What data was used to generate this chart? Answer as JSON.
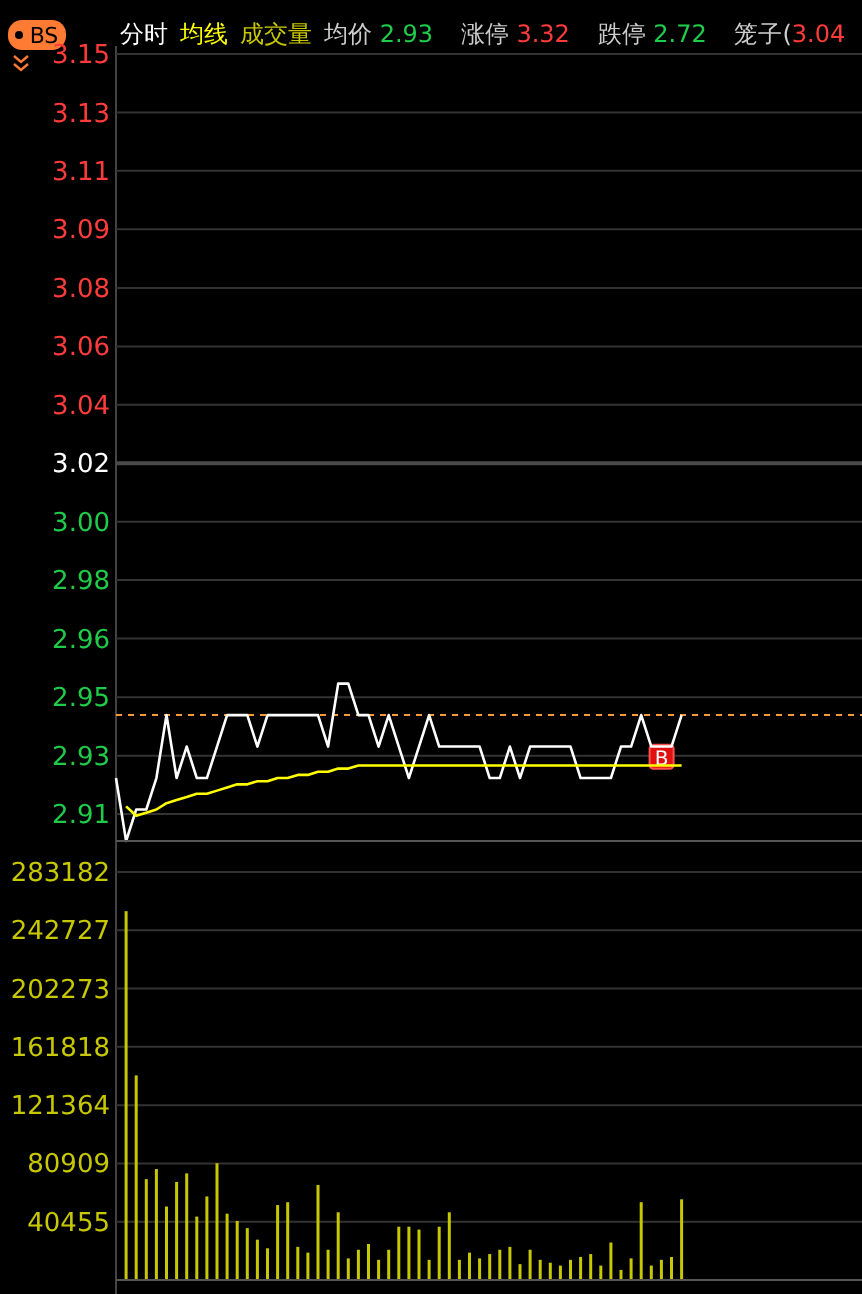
{
  "chart_data": [
    {
      "type": "line",
      "categories": [
        null,
        null,
        null,
        null,
        null,
        null,
        null,
        null,
        null,
        null,
        null,
        null,
        null,
        null,
        null,
        null,
        null,
        null,
        null,
        null,
        null,
        null,
        null,
        null,
        null,
        null,
        null,
        null,
        null,
        null,
        null,
        null,
        null,
        null,
        null,
        null,
        null,
        null,
        null,
        null,
        null,
        null,
        null,
        null,
        null,
        null,
        null,
        null,
        null,
        null,
        null,
        null,
        null,
        null,
        null,
        null,
        null,
        null,
        null,
        null,
        null,
        null,
        null,
        null,
        null,
        null,
        null,
        null,
        null,
        null,
        null,
        null,
        null,
        null
      ],
      "series": [
        {
          "name": "分时",
          "color": "#ffffff",
          "values": [
            2.92,
            2.9,
            2.91,
            2.91,
            2.92,
            2.94,
            2.92,
            2.93,
            2.92,
            2.92,
            2.93,
            2.94,
            2.94,
            2.94,
            2.93,
            2.94,
            2.94,
            2.94,
            2.94,
            2.94,
            2.94,
            2.93,
            2.95,
            2.95,
            2.94,
            2.94,
            2.93,
            2.94,
            2.93,
            2.92,
            2.93,
            2.94,
            2.93,
            2.93,
            2.93,
            2.93,
            2.93,
            2.92,
            2.92,
            2.93,
            2.92,
            2.93,
            2.93,
            2.93,
            2.93,
            2.93,
            2.92,
            2.92,
            2.92,
            2.92,
            2.93,
            2.93,
            2.94,
            2.93,
            2.93,
            2.93,
            2.94,
            null,
            null,
            null,
            null,
            null,
            null,
            null,
            null,
            null,
            null,
            null,
            null,
            null,
            null,
            null,
            null,
            null
          ]
        },
        {
          "name": "均线",
          "color": "#ffff00",
          "values": [
            null,
            2.911,
            2.908,
            2.909,
            2.91,
            2.912,
            2.913,
            2.914,
            2.915,
            2.915,
            2.916,
            2.917,
            2.918,
            2.918,
            2.919,
            2.919,
            2.92,
            2.92,
            2.921,
            2.921,
            2.922,
            2.922,
            2.923,
            2.923,
            2.924,
            2.924,
            2.924,
            2.924,
            2.924,
            2.924,
            2.924,
            2.924,
            2.924,
            2.924,
            2.924,
            2.924,
            2.924,
            2.924,
            2.924,
            2.924,
            2.924,
            2.924,
            2.924,
            2.924,
            2.924,
            2.924,
            2.924,
            2.924,
            2.924,
            2.924,
            2.924,
            2.924,
            2.924,
            2.924,
            2.924,
            2.924,
            2.924,
            null,
            null,
            null,
            null,
            null,
            null,
            null,
            null,
            null,
            null,
            null,
            null,
            null,
            null,
            null,
            null,
            null
          ]
        }
      ],
      "ylim": [
        2.9,
        3.15
      ],
      "yticks": [
        3.15,
        {
          "value": 3.1314,
          "label": "3.13"
        },
        {
          "value": 3.1129,
          "label": "3.11"
        },
        {
          "value": 3.0943,
          "label": "3.09"
        },
        {
          "value": 3.0757,
          "label": "3.08"
        },
        {
          "value": 3.0571,
          "label": "3.06"
        },
        {
          "value": 3.0386,
          "label": "3.04"
        },
        3.02,
        {
          "value": 3.0014,
          "label": "3.00"
        },
        {
          "value": 2.9829,
          "label": "2.98"
        },
        {
          "value": 2.9643,
          "label": "2.96"
        },
        {
          "value": 2.9457,
          "label": "2.95"
        },
        {
          "value": 2.9271,
          "label": "2.93"
        },
        {
          "value": 2.9086,
          "label": "2.91"
        }
      ],
      "grid": "y",
      "legend": "top left",
      "marker": "none",
      "line_style": "solid",
      "ref_lines": [
        {
          "axis": "y",
          "value": 3.02,
          "color": "#4a4a4a"
        },
        {
          "axis": "y",
          "value": 2.94,
          "color": "#ff9933",
          "line_style": "dashed"
        }
      ],
      "annotations": [
        "BS",
        "均价 2.93",
        "涨停 3.32",
        "跌停 2.72",
        "笼子(3.04",
        {
          "text": "B",
          "y": 2.928
        }
      ]
    },
    {
      "type": "bar",
      "categories": [
        null,
        null,
        null,
        null,
        null,
        null,
        null,
        null,
        null,
        null,
        null,
        null,
        null,
        null,
        null,
        null,
        null,
        null,
        null,
        null,
        null,
        null,
        null,
        null,
        null,
        null,
        null,
        null,
        null,
        null,
        null,
        null,
        null,
        null,
        null,
        null,
        null,
        null,
        null,
        null,
        null,
        null,
        null,
        null,
        null,
        null,
        null,
        null,
        null,
        null,
        null,
        null,
        null,
        null,
        null,
        null,
        null,
        null,
        null,
        null,
        null,
        null,
        null,
        null,
        null,
        null,
        null,
        null,
        null,
        null,
        null,
        null,
        null,
        null
      ],
      "series": [
        {
          "name": "成交量",
          "color": "#c8c800",
          "values": [
            null,
            256000,
            142000,
            70000,
            77000,
            51000,
            68000,
            74000,
            44000,
            58000,
            81000,
            46000,
            41000,
            36000,
            28000,
            22000,
            52000,
            54000,
            23000,
            19000,
            66000,
            21000,
            47000,
            15000,
            21000,
            25000,
            14000,
            21000,
            37000,
            37000,
            35000,
            14000,
            37000,
            47000,
            14000,
            19000,
            15000,
            18000,
            21000,
            23000,
            11000,
            21000,
            14000,
            12000,
            10000,
            14000,
            16000,
            18000,
            10000,
            26000,
            7000,
            15000,
            54000,
            10000,
            14000,
            16000,
            56000,
            null,
            null,
            null,
            null,
            null,
            null,
            null,
            null,
            null,
            null,
            null,
            null,
            null,
            null,
            null,
            null,
            null
          ]
        }
      ],
      "ylim": [
        0,
        283182
      ],
      "yticks": [
        40455,
        80909,
        121364,
        161818,
        202273,
        242727,
        283182
      ],
      "grid": "y",
      "legend": "top left"
    }
  ]
}
